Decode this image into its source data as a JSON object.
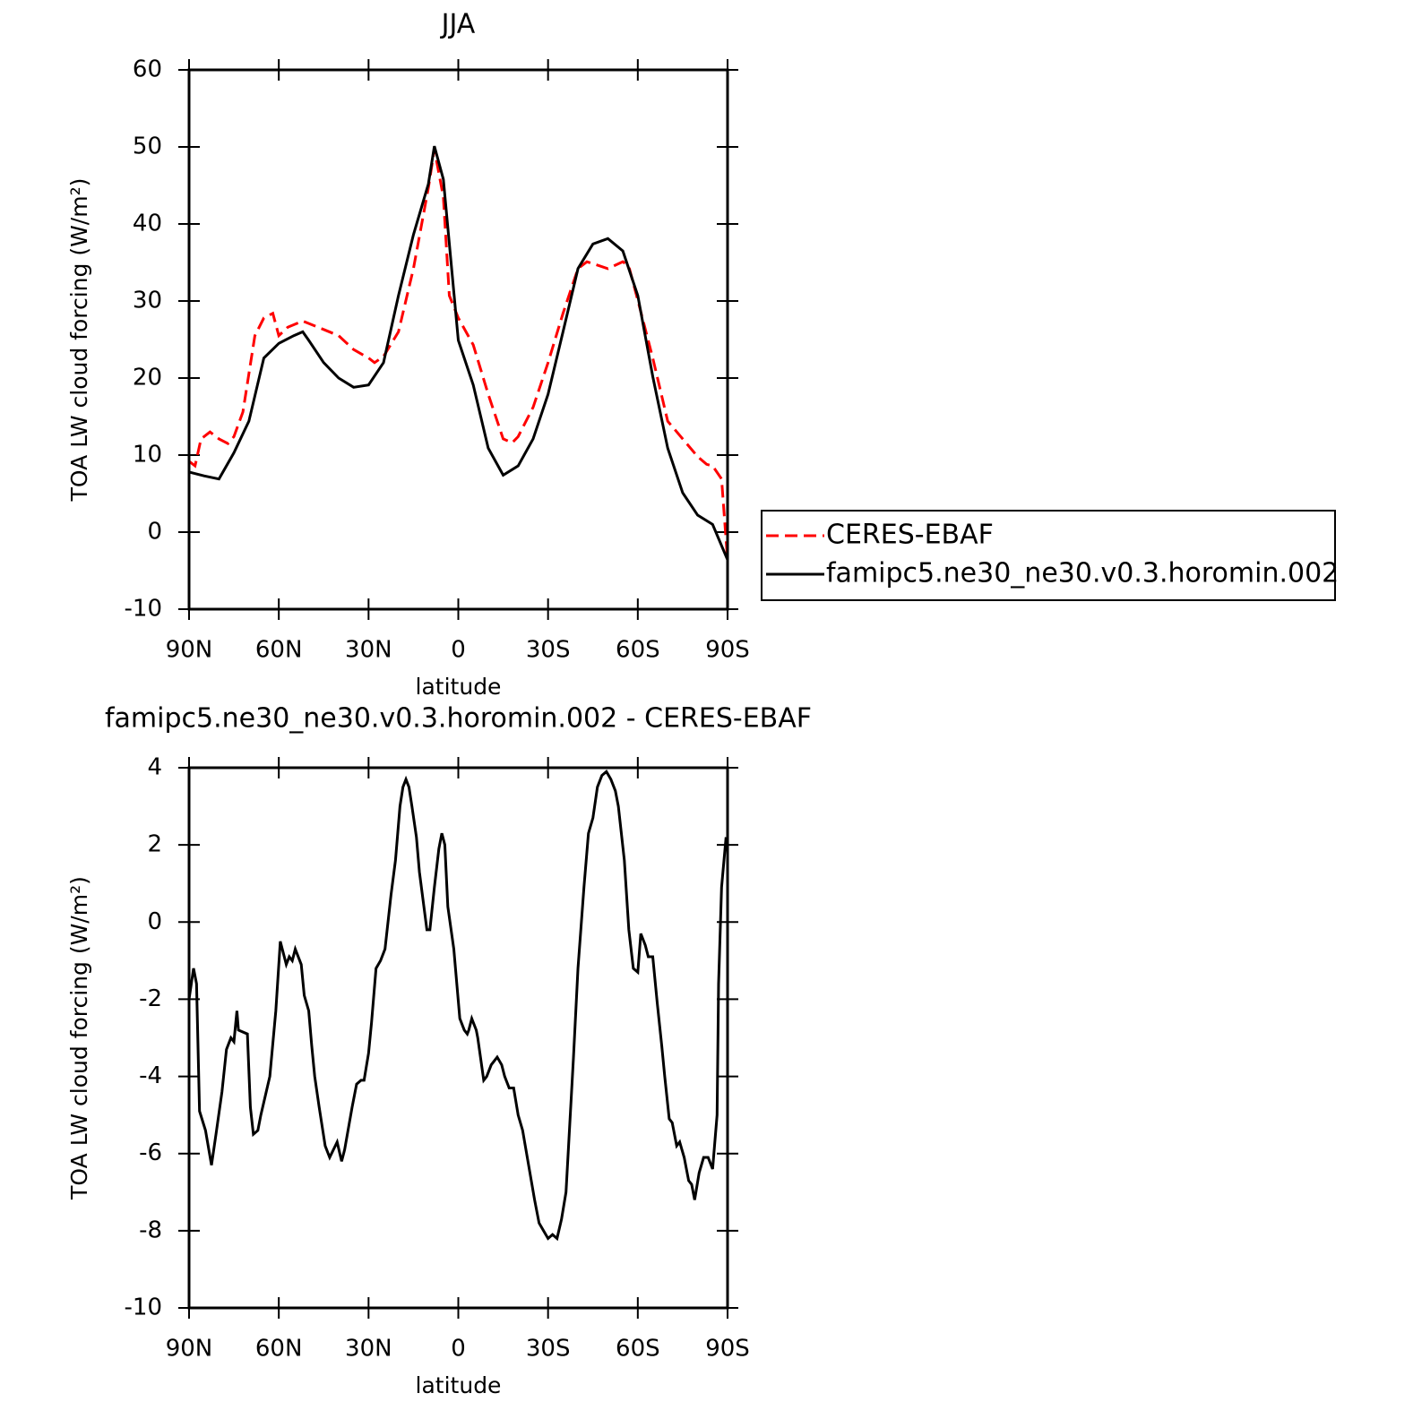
{
  "chart_data": [
    {
      "type": "line",
      "title": "JJA",
      "xlabel": "latitude",
      "ylabel": "TOA LW cloud forcing (W/m²)",
      "xlim": [
        90,
        -90
      ],
      "xticks": [
        {
          "value": 90,
          "label": "90N"
        },
        {
          "value": 60,
          "label": "60N"
        },
        {
          "value": 30,
          "label": "30N"
        },
        0,
        {
          "value": -30,
          "label": "30S"
        },
        {
          "value": -60,
          "label": "60S"
        },
        {
          "value": -90,
          "label": "90S"
        }
      ],
      "ylim": [
        -10,
        60
      ],
      "yticks": [
        -10,
        0,
        10,
        20,
        30,
        40,
        50,
        60
      ],
      "legend": "right",
      "series": [
        {
          "name": "CERES-EBAF",
          "color": "#ff0000",
          "dashed": true,
          "x": [
            90,
            88,
            86,
            83,
            80,
            77,
            75,
            72,
            68,
            65,
            62,
            60,
            57,
            52,
            45,
            40,
            35,
            30,
            28,
            25,
            20,
            15,
            10,
            8,
            5,
            3,
            0,
            -5,
            -10,
            -15,
            -18,
            -20,
            -25,
            -30,
            -35,
            -40,
            -43,
            -50,
            -55,
            -57,
            -60,
            -65,
            -70,
            -75,
            -80,
            -83,
            -85,
            -88,
            -90
          ],
          "values": [
            9.2,
            8.6,
            12.1,
            13,
            12.1,
            11.5,
            12.4,
            15.6,
            25.5,
            27.8,
            28.4,
            25.5,
            26.6,
            27.4,
            26.3,
            25.5,
            23.7,
            22.6,
            22,
            22.8,
            26,
            34.2,
            44.7,
            49.7,
            43.5,
            30.7,
            27.8,
            24.3,
            17.9,
            12.1,
            11.6,
            12.4,
            16.2,
            22,
            28.4,
            34.2,
            35.1,
            34.2,
            35.1,
            34.5,
            30.1,
            22.6,
            14.4,
            12.1,
            9.8,
            8.8,
            8.6,
            6.9,
            -3.6
          ]
        },
        {
          "name": "famipc5.ne30_ne30.v0.3.horomin.002",
          "color": "#000000",
          "dashed": false,
          "x": [
            90,
            85,
            80,
            75,
            70,
            65,
            60,
            55,
            52,
            50,
            45,
            40,
            35,
            30,
            25,
            20,
            15,
            10,
            8,
            5,
            0,
            -5,
            -10,
            -15,
            -20,
            -25,
            -30,
            -35,
            -40,
            -45,
            -50,
            -55,
            -60,
            -65,
            -70,
            -75,
            -80,
            -85,
            -90
          ],
          "values": [
            7.8,
            7.3,
            6.9,
            10.3,
            14.4,
            22.6,
            24.5,
            25.5,
            26,
            24.9,
            22,
            20,
            18.8,
            19.1,
            22,
            30.7,
            38.6,
            45.2,
            50.1,
            45.8,
            24.9,
            19.1,
            10.9,
            7.4,
            8.6,
            12.1,
            17.9,
            26,
            34.2,
            37.4,
            38.1,
            36.5,
            30.7,
            20.2,
            10.9,
            5.1,
            2.2,
            1,
            -3.6
          ]
        }
      ]
    },
    {
      "type": "line",
      "title": "famipc5.ne30_ne30.v0.3.horomin.002 - CERES-EBAF",
      "xlabel": "latitude",
      "ylabel": "TOA LW cloud forcing (W/m²)",
      "xlim": [
        90,
        -90
      ],
      "xticks": [
        {
          "value": 90,
          "label": "90N"
        },
        {
          "value": 60,
          "label": "60N"
        },
        {
          "value": 30,
          "label": "30N"
        },
        0,
        {
          "value": -30,
          "label": "30S"
        },
        {
          "value": -60,
          "label": "60S"
        },
        {
          "value": -90,
          "label": "90S"
        }
      ],
      "ylim": [
        -10,
        4
      ],
      "yticks": [
        -10,
        -8,
        -6,
        -4,
        -2,
        0,
        2,
        4
      ],
      "series": [
        {
          "color": "#000000",
          "dashed": false,
          "x": [
            90,
            88.5,
            87.5,
            86.5,
            84.5,
            82.5,
            81,
            79,
            77.5,
            76,
            75,
            74,
            73.5,
            70.5,
            69.5,
            68.5,
            67,
            66,
            64.5,
            63,
            61,
            59.5,
            57.5,
            56.5,
            55.5,
            54.5,
            52.5,
            51.5,
            50,
            49,
            48,
            46.5,
            44.5,
            43,
            40.5,
            39,
            38,
            35.5,
            34,
            32.5,
            31.5,
            30,
            29,
            27.5,
            26,
            24.5,
            22.5,
            21,
            19.5,
            18.5,
            17.5,
            16.5,
            15.5,
            14,
            13,
            10.5,
            9.5,
            8,
            6.5,
            5.5,
            4.5,
            3.5,
            1.5,
            -0.5,
            -2,
            -3,
            -3.5,
            -4.5,
            -6,
            -6.5,
            -8.5,
            -9.5,
            -11,
            -13,
            -14.5,
            -15.5,
            -17,
            -18.5,
            -20,
            -21.5,
            -23.5,
            -25.5,
            -27,
            -28.5,
            -30,
            -31.5,
            -33,
            -34.5,
            -36,
            -37,
            -38.5,
            -40,
            -42,
            -43.5,
            -45,
            -46.5,
            -48,
            -49.5,
            -51,
            -52.5,
            -53.5,
            -55.5,
            -57,
            -58.5,
            -60,
            -61,
            -62.5,
            -63.5,
            -65,
            -66.5,
            -68,
            -69,
            -70.5,
            -71.5,
            -73,
            -74,
            -75.5,
            -77,
            -78,
            -79,
            -80.5,
            -82,
            -83.5,
            -85,
            -86.5,
            -87,
            -88,
            -89.5
          ],
          "values": [
            -2,
            -1.2,
            -1.6,
            -4.9,
            -5.4,
            -6.3,
            -5.5,
            -4.4,
            -3.3,
            -3,
            -3.1,
            -2.3,
            -2.8,
            -2.9,
            -4.8,
            -5.5,
            -5.4,
            -5,
            -4.5,
            -4,
            -2.3,
            -0.5,
            -1.1,
            -0.9,
            -1,
            -0.7,
            -1.1,
            -1.9,
            -2.3,
            -3.2,
            -4,
            -4.8,
            -5.8,
            -6.1,
            -5.7,
            -6.2,
            -5.9,
            -4.8,
            -4.2,
            -4.1,
            -4.1,
            -3.4,
            -2.6,
            -1.2,
            -1,
            -0.7,
            0.7,
            1.6,
            3,
            3.5,
            3.7,
            3.5,
            3,
            2.2,
            1.3,
            -0.2,
            -0.2,
            0.9,
            1.9,
            2.3,
            2,
            0.4,
            -0.7,
            -2.5,
            -2.8,
            -2.9,
            -2.8,
            -2.5,
            -2.8,
            -3,
            -4.1,
            -4,
            -3.7,
            -3.5,
            -3.7,
            -4,
            -4.3,
            -4.3,
            -5,
            -5.4,
            -6.3,
            -7.2,
            -7.8,
            -8,
            -8.2,
            -8.1,
            -8.2,
            -7.7,
            -7,
            -5.6,
            -3.5,
            -1.2,
            0.9,
            2.3,
            2.7,
            3.5,
            3.8,
            3.9,
            3.7,
            3.4,
            3,
            1.6,
            -0.2,
            -1.2,
            -1.3,
            -0.3,
            -0.6,
            -0.9,
            -0.9,
            -2.1,
            -3.2,
            -4,
            -5.1,
            -5.2,
            -5.8,
            -5.7,
            -6.1,
            -6.7,
            -6.8,
            -7.2,
            -6.5,
            -6.1,
            -6.1,
            -6.4,
            -5,
            -1.6,
            0.9,
            2.2
          ]
        }
      ]
    }
  ]
}
